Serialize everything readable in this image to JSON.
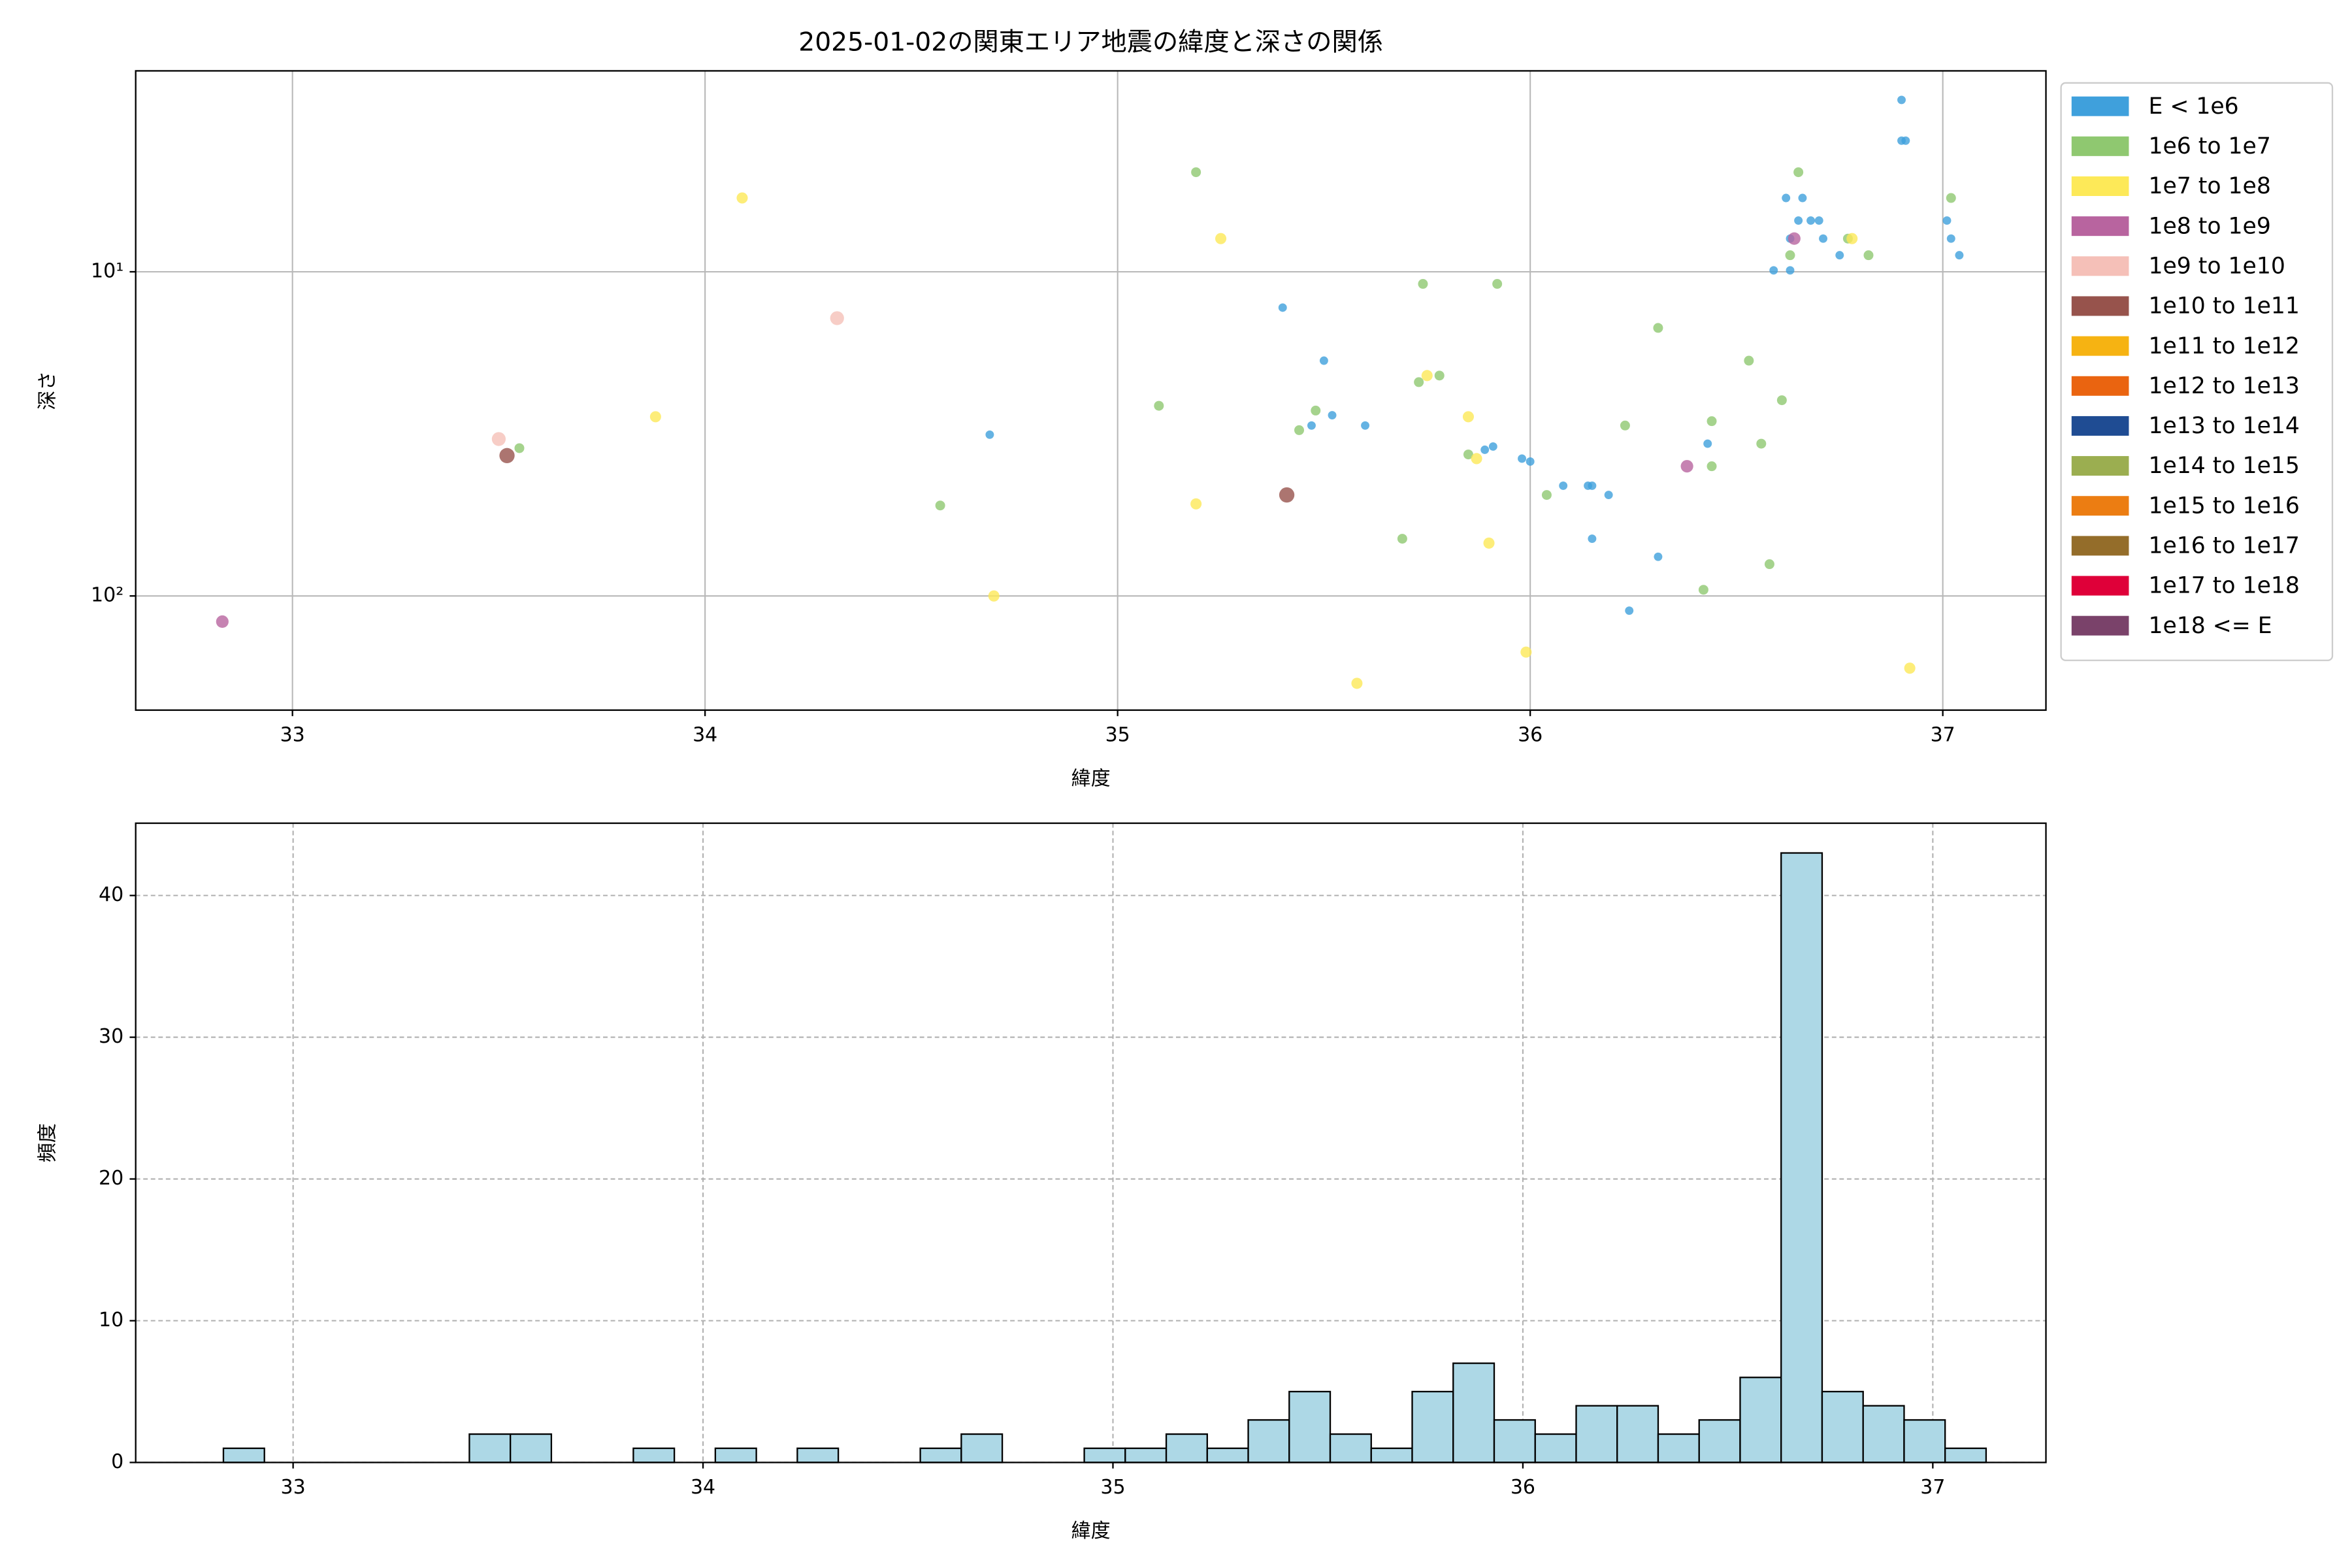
{
  "chart_data": [
    {
      "type": "scatter",
      "title": "2025-01-02の関東エリア地震の緯度と深さの関係",
      "x_label": "緯度",
      "y_label": "深さ",
      "xlim": [
        32.62,
        37.25
      ],
      "xticks": [
        33,
        34,
        35,
        36,
        37
      ],
      "ylim": [
        2.4,
        225
      ],
      "yticks": [
        {
          "value": 10,
          "label": "10¹"
        },
        {
          "value": 100,
          "label": "10²"
        }
      ],
      "log_y": true,
      "y_inverted": true,
      "grid": true,
      "legend": "right",
      "series": [
        {
          "name": "E < 1e6",
          "color": "#3fa0dc",
          "x": [
            36.9,
            36.9,
            36.91,
            36.62,
            36.66,
            36.65,
            36.68,
            36.7,
            37.01,
            36.63,
            36.71,
            37.02,
            36.75,
            37.04,
            36.59,
            36.63,
            35.4,
            35.5,
            34.69,
            35.47,
            35.52,
            35.6,
            35.91,
            35.89,
            35.98,
            36.0,
            36.08,
            36.14,
            36.15,
            36.19,
            36.43,
            36.15,
            36.31,
            36.24
          ],
          "y": [
            2.95,
            3.94,
            3.94,
            5.92,
            5.92,
            6.95,
            6.95,
            6.95,
            6.95,
            7.9,
            7.9,
            7.9,
            8.89,
            8.89,
            9.9,
            9.9,
            12.9,
            18.8,
            31.8,
            29.8,
            27.7,
            29.8,
            34.6,
            35.4,
            37.7,
            38.5,
            45.7,
            45.7,
            45.7,
            48.8,
            33.9,
            66.6,
            75.7,
            111
          ]
        },
        {
          "name": "1e6 to 1e7",
          "color": "#8fc870",
          "x": [
            36.65,
            35.19,
            37.02,
            36.77,
            36.82,
            36.63,
            35.74,
            35.92,
            36.31,
            35.1,
            36.53,
            35.73,
            35.78,
            35.48,
            35.44,
            36.61,
            36.44,
            36.23,
            36.56,
            33.55,
            36.44,
            35.85,
            36.04,
            34.57,
            35.69,
            36.58,
            36.42
          ],
          "y": [
            4.93,
            4.93,
            5.92,
            7.9,
            8.89,
            8.89,
            10.9,
            10.9,
            14.9,
            25.9,
            18.8,
            21.9,
            20.9,
            26.8,
            30.8,
            24.9,
            28.9,
            29.8,
            33.9,
            35.0,
            39.8,
            36.6,
            48.8,
            52.6,
            66.6,
            79.8,
            95.7
          ]
        },
        {
          "name": "1e7 to 1e8",
          "color": "#fde958",
          "x": [
            34.09,
            35.25,
            36.78,
            33.88,
            35.85,
            35.75,
            35.87,
            35.19,
            35.9,
            34.7,
            35.99,
            36.92,
            35.58
          ],
          "y": [
            5.92,
            7.9,
            7.9,
            28.0,
            28.0,
            20.9,
            37.7,
            52.0,
            68.7,
            100,
            149,
            167,
            186
          ]
        },
        {
          "name": "1e8 to 1e9",
          "color": "#b8649f",
          "x": [
            32.83,
            36.64,
            36.38
          ],
          "y": [
            120,
            7.9,
            39.8
          ]
        },
        {
          "name": "1e9 to 1e10",
          "color": "#f5c0b8",
          "x": [
            34.32,
            33.5
          ],
          "y": [
            13.9,
            32.8
          ]
        },
        {
          "name": "1e10 to 1e11",
          "color": "#97534c",
          "x": [
            33.52,
            35.41
          ],
          "y": [
            36.9,
            48.8
          ]
        },
        {
          "name": "1e11 to 1e12",
          "color": "#f6b312",
          "x": [],
          "y": []
        },
        {
          "name": "1e12 to 1e13",
          "color": "#ea6410",
          "x": [],
          "y": []
        },
        {
          "name": "1e13 to 1e14",
          "color": "#1f4c93",
          "x": [],
          "y": []
        },
        {
          "name": "1e14 to 1e15",
          "color": "#9bae50",
          "x": [],
          "y": []
        },
        {
          "name": "1e15 to 1e16",
          "color": "#ec7d12",
          "x": [],
          "y": []
        },
        {
          "name": "1e16 to 1e17",
          "color": "#946d2a",
          "x": [],
          "y": []
        },
        {
          "name": "1e17 to 1e18",
          "color": "#df0039",
          "x": [],
          "y": []
        },
        {
          "name": "1e18 <= E",
          "color": "#7a426a",
          "x": [],
          "y": []
        }
      ]
    },
    {
      "type": "histogram",
      "x_label": "緯度",
      "y_label": "頻度",
      "color": "#add8e6",
      "edgecolor": "#000000",
      "xlim": [
        32.616,
        37.276
      ],
      "xticks": [
        33,
        34,
        35,
        36,
        37
      ],
      "ylim": [
        0,
        45.1
      ],
      "yticks": [
        0,
        10,
        20,
        30,
        40
      ],
      "grid": true,
      "grid_style": "dashed",
      "bins": [
        32.83,
        32.93,
        33.03,
        33.13,
        33.23,
        33.33,
        33.43,
        33.53,
        33.63,
        33.73,
        33.83,
        33.93,
        34.03,
        34.13,
        34.23,
        34.33,
        34.43,
        34.53,
        34.63,
        34.73,
        34.83,
        34.93,
        35.03,
        35.13,
        35.23,
        35.33,
        35.43,
        35.53,
        35.63,
        35.73,
        35.83,
        35.93,
        36.03,
        36.13,
        36.23,
        36.33,
        36.43,
        36.53,
        36.63,
        36.73,
        36.83,
        36.93,
        37.03,
        37.13
      ],
      "values": [
        1,
        0,
        0,
        0,
        0,
        0,
        2,
        2,
        0,
        0,
        1,
        0,
        1,
        0,
        1,
        0,
        0,
        1,
        2,
        0,
        0,
        1,
        1,
        2,
        1,
        3,
        5,
        2,
        1,
        5,
        7,
        3,
        2,
        4,
        4,
        2,
        3,
        6,
        43,
        5,
        4,
        3,
        1
      ]
    }
  ]
}
